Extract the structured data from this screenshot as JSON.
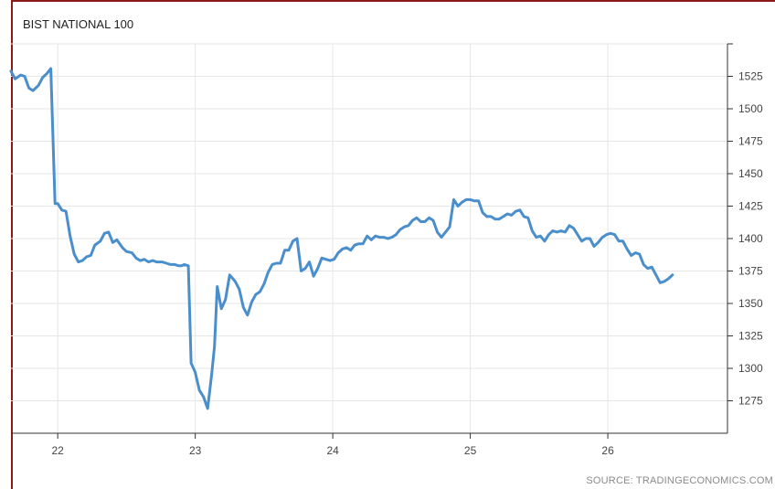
{
  "chart_data": {
    "type": "line",
    "title": "BIST NATIONAL 100",
    "source": "SOURCE: TRADINGECONOMICS.COM",
    "xlabel": "",
    "ylabel": "",
    "xlim": [
      21.66,
      26.87
    ],
    "ylim": [
      1250,
      1550
    ],
    "x_ticks": [
      22,
      23,
      24,
      25,
      26
    ],
    "y_ticks": [
      1275,
      1300,
      1325,
      1350,
      1375,
      1400,
      1425,
      1450,
      1475,
      1500,
      1525
    ],
    "grid": true,
    "legend": "none",
    "colors": {
      "line": "#4a8fcc",
      "grid": "#e6e6e6",
      "axis": "#333333",
      "frame": "#8b1a1a"
    },
    "series": [
      {
        "values": [
          [
            21.66,
            1529
          ],
          [
            21.69,
            1523
          ],
          [
            21.73,
            1526
          ],
          [
            21.76,
            1525
          ],
          [
            21.79,
            1516
          ],
          [
            21.82,
            1514
          ],
          [
            21.86,
            1518
          ],
          [
            21.89,
            1524
          ],
          [
            21.92,
            1527
          ],
          [
            21.95,
            1531
          ],
          [
            21.98,
            1427
          ],
          [
            22.0,
            1427
          ],
          [
            22.03,
            1422
          ],
          [
            22.06,
            1421
          ],
          [
            22.09,
            1402
          ],
          [
            22.12,
            1388
          ],
          [
            22.15,
            1382
          ],
          [
            22.18,
            1383
          ],
          [
            22.21,
            1386
          ],
          [
            22.24,
            1387
          ],
          [
            22.27,
            1395
          ],
          [
            22.31,
            1398
          ],
          [
            22.34,
            1404
          ],
          [
            22.37,
            1405
          ],
          [
            22.4,
            1397
          ],
          [
            22.43,
            1399
          ],
          [
            22.47,
            1393
          ],
          [
            22.5,
            1390
          ],
          [
            22.54,
            1389
          ],
          [
            22.57,
            1385
          ],
          [
            22.6,
            1383
          ],
          [
            22.63,
            1384
          ],
          [
            22.66,
            1382
          ],
          [
            22.69,
            1383
          ],
          [
            22.72,
            1382
          ],
          [
            22.76,
            1382
          ],
          [
            22.79,
            1381
          ],
          [
            22.82,
            1380
          ],
          [
            22.85,
            1380
          ],
          [
            22.88,
            1379
          ],
          [
            22.9,
            1379
          ],
          [
            22.92,
            1380
          ],
          [
            22.95,
            1379
          ],
          [
            22.97,
            1304
          ],
          [
            23.0,
            1297
          ],
          [
            23.03,
            1283
          ],
          [
            23.06,
            1278
          ],
          [
            23.09,
            1269
          ],
          [
            23.12,
            1296
          ],
          [
            23.14,
            1317
          ],
          [
            23.16,
            1363
          ],
          [
            23.19,
            1346
          ],
          [
            23.22,
            1353
          ],
          [
            23.25,
            1372
          ],
          [
            23.29,
            1367
          ],
          [
            23.32,
            1361
          ],
          [
            23.35,
            1347
          ],
          [
            23.38,
            1341
          ],
          [
            23.41,
            1351
          ],
          [
            23.44,
            1357
          ],
          [
            23.47,
            1359
          ],
          [
            23.5,
            1365
          ],
          [
            23.53,
            1374
          ],
          [
            23.56,
            1380
          ],
          [
            23.59,
            1381
          ],
          [
            23.62,
            1381
          ],
          [
            23.65,
            1391
          ],
          [
            23.68,
            1391
          ],
          [
            23.71,
            1398
          ],
          [
            23.74,
            1400
          ],
          [
            23.77,
            1375
          ],
          [
            23.8,
            1377
          ],
          [
            23.83,
            1382
          ],
          [
            23.86,
            1371
          ],
          [
            23.89,
            1377
          ],
          [
            23.92,
            1385
          ],
          [
            23.95,
            1384
          ],
          [
            23.98,
            1383
          ],
          [
            24.01,
            1384
          ],
          [
            24.04,
            1389
          ],
          [
            24.07,
            1392
          ],
          [
            24.1,
            1393
          ],
          [
            24.13,
            1391
          ],
          [
            24.16,
            1395
          ],
          [
            24.19,
            1396
          ],
          [
            24.22,
            1396
          ],
          [
            24.25,
            1402
          ],
          [
            24.28,
            1399
          ],
          [
            24.31,
            1402
          ],
          [
            24.34,
            1401
          ],
          [
            24.37,
            1401
          ],
          [
            24.4,
            1400
          ],
          [
            24.43,
            1401
          ],
          [
            24.46,
            1403
          ],
          [
            24.49,
            1407
          ],
          [
            24.52,
            1409
          ],
          [
            24.55,
            1410
          ],
          [
            24.58,
            1414
          ],
          [
            24.61,
            1416
          ],
          [
            24.64,
            1413
          ],
          [
            24.67,
            1413
          ],
          [
            24.7,
            1416
          ],
          [
            24.73,
            1414
          ],
          [
            24.76,
            1405
          ],
          [
            24.79,
            1401
          ],
          [
            24.82,
            1405
          ],
          [
            24.85,
            1409
          ],
          [
            24.88,
            1430
          ],
          [
            24.91,
            1425
          ],
          [
            24.94,
            1428
          ],
          [
            24.97,
            1430
          ],
          [
            25.0,
            1430
          ],
          [
            25.03,
            1429
          ],
          [
            25.06,
            1429
          ],
          [
            25.09,
            1420
          ],
          [
            25.12,
            1417
          ],
          [
            25.15,
            1417
          ],
          [
            25.18,
            1415
          ],
          [
            25.21,
            1415
          ],
          [
            25.24,
            1417
          ],
          [
            25.27,
            1419
          ],
          [
            25.3,
            1418
          ],
          [
            25.33,
            1421
          ],
          [
            25.36,
            1422
          ],
          [
            25.39,
            1417
          ],
          [
            25.42,
            1416
          ],
          [
            25.45,
            1406
          ],
          [
            25.48,
            1401
          ],
          [
            25.51,
            1402
          ],
          [
            25.54,
            1398
          ],
          [
            25.57,
            1403
          ],
          [
            25.6,
            1406
          ],
          [
            25.63,
            1405
          ],
          [
            25.66,
            1406
          ],
          [
            25.69,
            1405
          ],
          [
            25.72,
            1410
          ],
          [
            25.75,
            1408
          ],
          [
            25.78,
            1403
          ],
          [
            25.81,
            1398
          ],
          [
            25.84,
            1400
          ],
          [
            25.87,
            1400
          ],
          [
            25.9,
            1394
          ],
          [
            25.93,
            1397
          ],
          [
            25.96,
            1401
          ],
          [
            25.99,
            1403
          ],
          [
            26.02,
            1404
          ],
          [
            26.05,
            1403
          ],
          [
            26.08,
            1398
          ],
          [
            26.11,
            1398
          ],
          [
            26.14,
            1392
          ],
          [
            26.17,
            1387
          ],
          [
            26.2,
            1389
          ],
          [
            26.23,
            1388
          ],
          [
            26.26,
            1380
          ],
          [
            26.29,
            1377
          ],
          [
            26.32,
            1378
          ],
          [
            26.35,
            1372
          ],
          [
            26.38,
            1366
          ],
          [
            26.41,
            1367
          ],
          [
            26.44,
            1369
          ],
          [
            26.47,
            1372
          ]
        ]
      }
    ]
  }
}
